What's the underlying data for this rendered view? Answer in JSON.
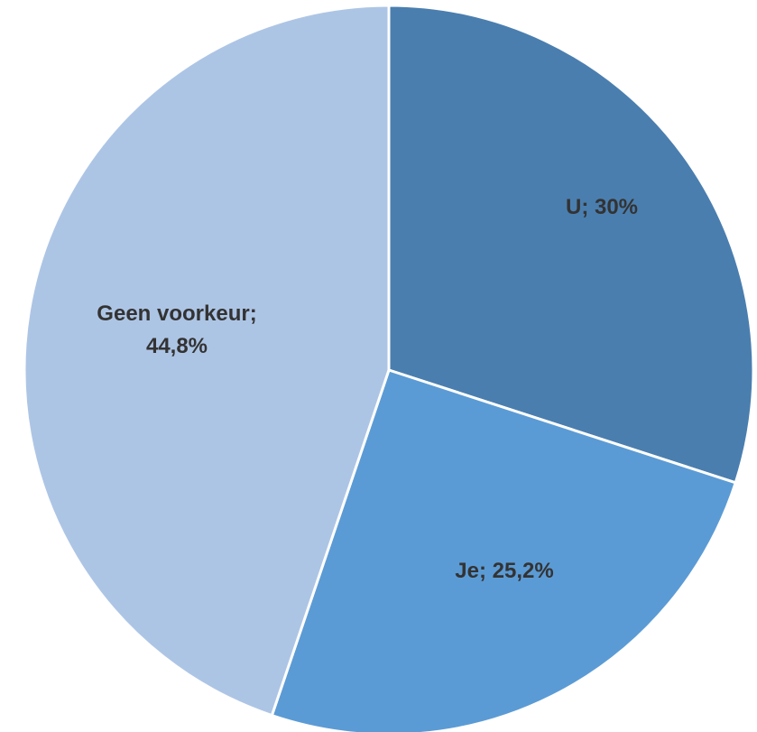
{
  "chart_data": {
    "type": "pie",
    "slices": [
      {
        "label": "U",
        "value": 30,
        "display": "U; 30%",
        "color": "#4a7eaf"
      },
      {
        "label": "Je",
        "value": 25.2,
        "display": "Je; 25,2%",
        "color": "#5b9bd5"
      },
      {
        "label": "Geen voorkeur",
        "value": 44.8,
        "display": [
          "Geen voorkeur;",
          "44,8%"
        ],
        "color": "#adc5e5"
      }
    ],
    "start": "12 o'clock",
    "direction": "clockwise",
    "legend": "none"
  }
}
